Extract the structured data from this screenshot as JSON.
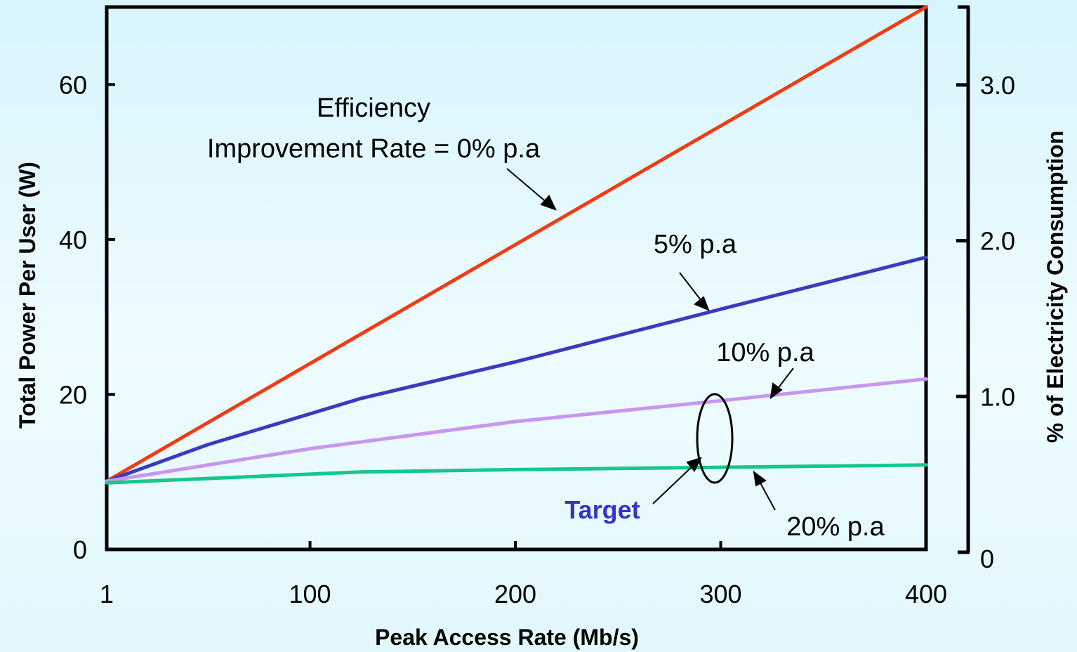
{
  "chart_data": {
    "type": "line",
    "xlabel": "Peak Access Rate (Mb/s)",
    "ylabel": "Total Power Per User (W)",
    "y2label": "% of Electricity Consumption",
    "x_ticks": [
      "1",
      "100",
      "200",
      "300",
      "400"
    ],
    "x_tick_values": [
      1,
      100,
      200,
      300,
      400
    ],
    "y_ticks": [
      "0",
      "20",
      "40",
      "60"
    ],
    "y_tick_values": [
      0,
      20,
      40,
      60
    ],
    "y2_ticks": [
      "0",
      "1.0",
      "2.0",
      "3.0"
    ],
    "y2_tick_values": [
      0,
      1,
      2,
      3
    ],
    "xlim": [
      1,
      400
    ],
    "ylim": [
      0,
      70
    ],
    "y2lim": [
      0,
      3.5
    ],
    "grid": false,
    "series": [
      {
        "name": "0% p.a",
        "color": "#f03c14",
        "x": [
          1,
          400
        ],
        "y": [
          8.8,
          70
        ]
      },
      {
        "name": "5% p.a",
        "color": "#3a3ac0",
        "x": [
          1,
          50,
          125,
          200,
          300,
          400
        ],
        "y": [
          8.8,
          13.5,
          19.5,
          24.2,
          31,
          37.7
        ]
      },
      {
        "name": "10% p.a",
        "color": "#c896f0",
        "x": [
          1,
          100,
          200,
          300,
          400
        ],
        "y": [
          8.8,
          13,
          16.5,
          19.2,
          22
        ]
      },
      {
        "name": "20% p.a",
        "color": "#14c88c",
        "x": [
          1,
          125,
          200,
          300,
          400
        ],
        "y": [
          8.6,
          10,
          10.3,
          10.6,
          10.9
        ]
      }
    ],
    "annotations": {
      "efficiency_line1": "Efficiency",
      "efficiency_line2": "Improvement Rate = 0% p.a",
      "five": "5% p.a",
      "ten": "10% p.a",
      "twenty": "20% p.a",
      "target": "Target"
    }
  }
}
